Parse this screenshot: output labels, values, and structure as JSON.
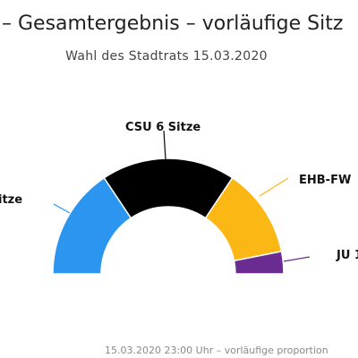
{
  "chart_data": {
    "type": "pie",
    "variant": "semicircle",
    "title": "– Gesamtergebnis – vorläufige Sitz",
    "subtitle": "Wahl des Stadtrats 15.03.2020",
    "footer": "15.03.2020 23:00 Uhr – vorläufige proportion",
    "series": [
      {
        "name": "",
        "label": "itze",
        "value": 5,
        "color": "#2b95f0"
      },
      {
        "name": "CSU",
        "label": "CSU 6 Sitze",
        "value": 6,
        "color": "#000000"
      },
      {
        "name": "EHB-FW",
        "label": "EHB-FW",
        "value": 4,
        "color": "#fbb714"
      },
      {
        "name": "JU",
        "label": "JU 1",
        "value": 1,
        "color": "#6a2c91"
      }
    ]
  }
}
